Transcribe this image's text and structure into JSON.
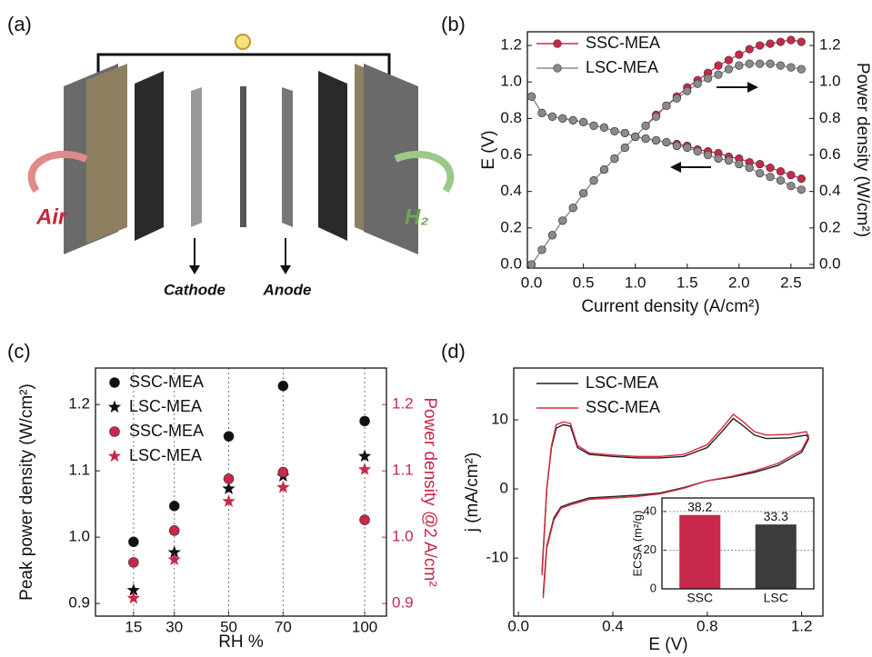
{
  "diagram": {
    "panel_label": "(a)",
    "labels": {
      "air": "Air",
      "h2": "H₂",
      "cathode": "Cathode",
      "anode": "Anode"
    }
  },
  "chart_data": [
    {
      "type": "line",
      "panel_label": "(b)",
      "xlabel": "Current density (A/cm²)",
      "ylabel": "E (V)",
      "y2label": "Power density (W/cm²)",
      "xlim": [
        -0.04,
        2.72
      ],
      "ylim": [
        -0.02,
        1.275
      ],
      "y2lim": [
        -0.02,
        1.275
      ],
      "xticks": [
        {
          "value": 0,
          "label": "0.0"
        },
        0.5,
        {
          "value": 1,
          "label": "1.0"
        },
        1.5,
        {
          "value": 2,
          "label": "2.0"
        },
        2.5
      ],
      "yticks": [
        {
          "value": 0,
          "label": "0.0"
        },
        0.2,
        0.4,
        0.6,
        0.8,
        {
          "value": 1,
          "label": "1.0"
        },
        1.2
      ],
      "y2ticks": [
        {
          "value": 0,
          "label": "0.0"
        },
        0.2,
        0.4,
        0.6,
        0.8,
        {
          "value": 1,
          "label": "1.0"
        },
        1.2
      ],
      "legend": "upper left",
      "marker": "circle",
      "x": [
        0,
        0.1,
        0.2,
        0.3,
        0.4,
        0.5,
        0.6,
        0.7,
        0.8,
        0.9,
        1.0,
        1.1,
        1.2,
        1.3,
        1.4,
        1.5,
        1.6,
        1.7,
        1.8,
        1.9,
        2.0,
        2.1,
        2.2,
        2.3,
        2.4,
        2.5,
        2.6
      ],
      "series": [
        {
          "name": "SSC-MEA",
          "color": "#c8284a",
          "values": [
            0.92,
            0.83,
            0.81,
            0.8,
            0.79,
            0.78,
            0.76,
            0.75,
            0.73,
            0.72,
            0.7,
            0.69,
            0.68,
            0.67,
            0.66,
            0.65,
            0.63,
            0.62,
            0.61,
            0.59,
            0.58,
            0.56,
            0.55,
            0.53,
            0.51,
            0.49,
            0.47
          ]
        },
        {
          "name": "LSC-MEA",
          "color": "#8a8a8a",
          "values": [
            0.92,
            0.83,
            0.81,
            0.8,
            0.79,
            0.78,
            0.76,
            0.75,
            0.73,
            0.72,
            0.7,
            0.69,
            0.68,
            0.67,
            0.65,
            0.64,
            0.62,
            0.6,
            0.58,
            0.57,
            0.55,
            0.53,
            0.5,
            0.48,
            0.46,
            0.43,
            0.41
          ]
        },
        {
          "color": "#c8284a",
          "axis": "y2",
          "values": [
            0,
            0.08,
            0.16,
            0.24,
            0.31,
            0.39,
            0.46,
            0.52,
            0.58,
            0.64,
            0.7,
            0.76,
            0.82,
            0.87,
            0.92,
            0.97,
            1.01,
            1.05,
            1.09,
            1.12,
            1.15,
            1.18,
            1.2,
            1.21,
            1.22,
            1.23,
            1.22
          ]
        },
        {
          "color": "#8a8a8a",
          "axis": "y2",
          "values": [
            0,
            0.08,
            0.16,
            0.24,
            0.31,
            0.39,
            0.46,
            0.52,
            0.58,
            0.64,
            0.7,
            0.76,
            0.81,
            0.87,
            0.91,
            0.95,
            0.99,
            1.02,
            1.04,
            1.07,
            1.09,
            1.1,
            1.1,
            1.1,
            1.09,
            1.08,
            1.07
          ]
        }
      ]
    },
    {
      "type": "scatter",
      "panel_label": "(c)",
      "xlabel": "RH %",
      "ylabel": "Peak power density (W/cm²)",
      "y2label": "Power density @2 A/cm²",
      "y2color": "#c8284a",
      "xlim": [
        1,
        108
      ],
      "ylim": [
        0.881,
        1.255
      ],
      "y2lim": [
        0.881,
        1.255
      ],
      "xticks": [
        15,
        30,
        50,
        70,
        100
      ],
      "yticks": [
        0.9,
        {
          "value": 1,
          "label": "1.0"
        },
        1.1,
        1.2
      ],
      "y2ticks": [
        0.9,
        {
          "value": 1,
          "label": "1.0"
        },
        1.1,
        1.2
      ],
      "grid": "x",
      "legend": "upper left",
      "x": [
        15,
        30,
        50,
        70,
        100
      ],
      "series": [
        {
          "name": "SSC-MEA",
          "color": "#111111",
          "marker": "circle",
          "values": [
            0.993,
            1.047,
            1.152,
            1.228,
            1.175
          ]
        },
        {
          "name": "LSC-MEA",
          "color": "#111111",
          "marker": "star",
          "values": [
            0.92,
            0.977,
            1.073,
            1.092,
            1.122
          ]
        },
        {
          "name": "SSC-MEA",
          "color": "#c8284a",
          "marker": "circle",
          "axis": "y2",
          "values": [
            0.962,
            1.01,
            1.088,
            1.098,
            1.026
          ]
        },
        {
          "name": "LSC-MEA",
          "color": "#c8284a",
          "marker": "star",
          "axis": "y2",
          "values": [
            0.908,
            0.966,
            1.054,
            1.075,
            1.102
          ]
        }
      ]
    },
    {
      "type": "line",
      "panel_label": "(d)",
      "xlabel": "E (V)",
      "ylabel": "j (mA/cm²)",
      "xlim": [
        -0.02,
        1.29
      ],
      "ylim": [
        -18.4,
        17.5
      ],
      "xticks": [
        {
          "value": 0,
          "label": "0.0"
        },
        0.4,
        0.8,
        1.2
      ],
      "yticks": [
        -10,
        0,
        10
      ],
      "legend": "upper left",
      "series": [
        {
          "name": "LSC-MEA",
          "color": "#222222",
          "x": [
            0.1,
            0.12,
            0.14,
            0.16,
            0.19,
            0.22,
            0.25,
            0.3,
            0.4,
            0.5,
            0.6,
            0.7,
            0.8,
            0.86,
            0.91,
            0.95,
            1.0,
            1.05,
            1.15,
            1.22,
            1.23,
            1.2,
            1.1,
            1.0,
            0.9,
            0.8,
            0.7,
            0.6,
            0.5,
            0.4,
            0.3,
            0.22,
            0.18,
            0.15,
            0.12,
            0.105
          ],
          "values": [
            -12,
            0,
            6,
            8.8,
            9.3,
            9.1,
            6,
            5,
            4.7,
            4.5,
            4.5,
            4.7,
            6,
            8.2,
            10.2,
            9.2,
            7.8,
            7.3,
            7.4,
            7.8,
            7.3,
            5.3,
            3.4,
            2.4,
            1.7,
            1.2,
            0.2,
            -0.6,
            -0.9,
            -1.1,
            -1.3,
            -2.1,
            -2.6,
            -4.2,
            -8.3,
            -15.3
          ]
        },
        {
          "name": "SSC-MEA",
          "color": "#d8283c",
          "x": [
            0.1,
            0.12,
            0.14,
            0.16,
            0.19,
            0.22,
            0.25,
            0.3,
            0.4,
            0.5,
            0.6,
            0.7,
            0.8,
            0.86,
            0.91,
            0.95,
            1.0,
            1.05,
            1.15,
            1.22,
            1.23,
            1.2,
            1.1,
            1.0,
            0.9,
            0.8,
            0.7,
            0.6,
            0.5,
            0.4,
            0.3,
            0.22,
            0.18,
            0.15,
            0.12,
            0.105
          ],
          "values": [
            -12.5,
            0,
            6.3,
            9.3,
            9.7,
            9.5,
            6.3,
            5.2,
            4.9,
            4.7,
            4.7,
            5,
            6.4,
            8.7,
            10.8,
            9.8,
            8.3,
            7.8,
            7.9,
            8.3,
            7.6,
            5.6,
            3.7,
            2.6,
            1.8,
            1.2,
            0.1,
            -0.7,
            -1.1,
            -1.3,
            -1.5,
            -2.3,
            -2.8,
            -4.5,
            -8.6,
            -15.8
          ]
        }
      ]
    },
    {
      "type": "bar",
      "ylabel": "ECSA (m²/g)",
      "ylim": [
        0,
        47
      ],
      "yticks": [
        0,
        20,
        40
      ],
      "grid": "y",
      "categories": [
        "SSC",
        "LSC"
      ],
      "values": [
        38.2,
        33.3
      ],
      "colors": [
        "#c8284a",
        "#3c3c3c"
      ]
    }
  ]
}
